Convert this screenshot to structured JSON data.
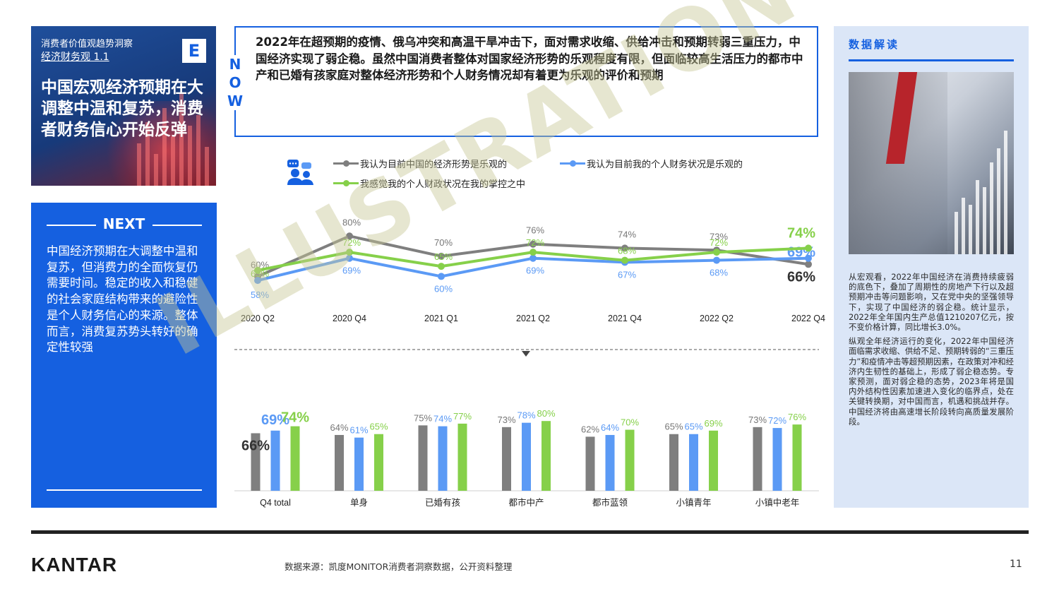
{
  "title_card": {
    "kicker": "消费者价值观趋势洞察",
    "subtitle": "经济财务观 1.1",
    "badge": "E",
    "title": "中国宏观经济预期在大调整中温和复苏，消费者财务信心开始反弹"
  },
  "next": {
    "label": "NEXT",
    "text": "中国经济预期在大调整中温和复苏，但消费力的全面恢复仍需要时间。稳定的收入和稳健的社会家庭结构带来的避险性是个人财务信心的来源。整体而言，消费复苏势头转好的确定性较强"
  },
  "now": {
    "letters": [
      "N",
      "O",
      "W"
    ],
    "text": "2022年在超预期的疫情、俄乌冲突和高温干旱冲击下，面对需求收缩、供给冲击和预期转弱三重压力，中国经济实现了弱企稳。虽然中国消费者整体对国家经济形势的乐观程度有限，但面临较高生活压力的都市中产和已婚有孩家庭对整体经济形势和个人财务情况却有着更为乐观的评价和预期"
  },
  "insight": {
    "heading": "数据解读",
    "paragraphs": [
      "从宏观看，2022年中国经济在消费持续疲弱的底色下，叠加了周期性的房地产下行以及超预期冲击等问题影响，又在党中央的坚强领导下，实现了中国经济的弱企稳。统计显示，2022年全年国内生产总值1210207亿元，按不变价格计算，同比增长3.0%。",
      "纵观全年经济运行的变化，2022年中国经济面临需求收缩、供给不足、预期转弱的“三重压力”和疫情冲击等超预期因素，在政策对冲和经济内生韧性的基础上，形成了弱企稳态势。专家预测，面对弱企稳的态势，2023年将是国内外结构性因素加速进入变化的临界点，处在关键转换期，对中国而言，机遇和挑战并存。中国经济将由高速增长阶段转向高质量发展阶段。"
    ]
  },
  "watermark": "ILLUSTRATION",
  "footer": {
    "logo": "KANTAR",
    "source": "数据来源：凯度MONITOR消费者洞察数据，公开资料整理",
    "page": "11"
  },
  "colors": {
    "accent": "#1560e0",
    "gray_series": "#7f7f7f",
    "blue_series": "#5b9af5",
    "green_series": "#86d04a"
  },
  "chart_data": [
    {
      "type": "line",
      "legend": [
        {
          "name": "我认为目前中国的经济形势是乐观的",
          "color": "#7f7f7f"
        },
        {
          "name": "我认为目前我的个人财务状况是乐观的",
          "color": "#5b9af5"
        },
        {
          "name": "我感觉我的个人财政状况在我的掌控之中",
          "color": "#86d04a"
        }
      ],
      "x": [
        "2020 Q2",
        "2020 Q4",
        "2021 Q1",
        "2021 Q2",
        "2021 Q4",
        "2022 Q2",
        "2022 Q4"
      ],
      "series": [
        {
          "name": "我认为目前中国的经济形势是乐观的",
          "values": [
            60,
            80,
            70,
            76,
            74,
            73,
            66
          ],
          "labels": [
            "60%",
            "80%",
            "70%",
            "76%",
            "74%",
            "73%",
            "66%"
          ]
        },
        {
          "name": "我认为目前我的个人财务状况是乐观的",
          "values": [
            58,
            69,
            60,
            69,
            67,
            68,
            69
          ],
          "labels": [
            "58%",
            "69%",
            "60%",
            "69%",
            "67%",
            "68%",
            "69%"
          ]
        },
        {
          "name": "我感觉我的个人财政状况在我的掌控之中",
          "values": [
            63,
            72,
            65,
            72,
            68,
            72,
            74
          ],
          "labels": [
            "63%",
            "72%",
            "65%",
            "72%",
            "68%",
            "72%",
            "74%"
          ]
        }
      ],
      "ylim": [
        50,
        85
      ]
    },
    {
      "type": "bar",
      "categories": [
        "Q4 total",
        "单身",
        "已婚有孩",
        "都市中产",
        "都市蓝领",
        "小镇青年",
        "小镇中老年"
      ],
      "series": [
        {
          "name": "我认为目前中国的经济形势是乐观的",
          "values": [
            66,
            64,
            75,
            73,
            62,
            65,
            73
          ],
          "labels": [
            "66%",
            "64%",
            "75%",
            "73%",
            "62%",
            "65%",
            "73%"
          ]
        },
        {
          "name": "我认为目前我的个人财务状况是乐观的",
          "values": [
            69,
            61,
            74,
            78,
            64,
            65,
            72
          ],
          "labels": [
            "69%",
            "61%",
            "74%",
            "78%",
            "64%",
            "65%",
            "72%"
          ]
        },
        {
          "name": "我感觉我的个人财政状况在我的掌控之中",
          "values": [
            74,
            65,
            77,
            80,
            70,
            69,
            76
          ],
          "labels": [
            "74%",
            "65%",
            "77%",
            "80%",
            "70%",
            "69%",
            "76%"
          ]
        }
      ],
      "ylim": [
        0,
        100
      ]
    }
  ]
}
